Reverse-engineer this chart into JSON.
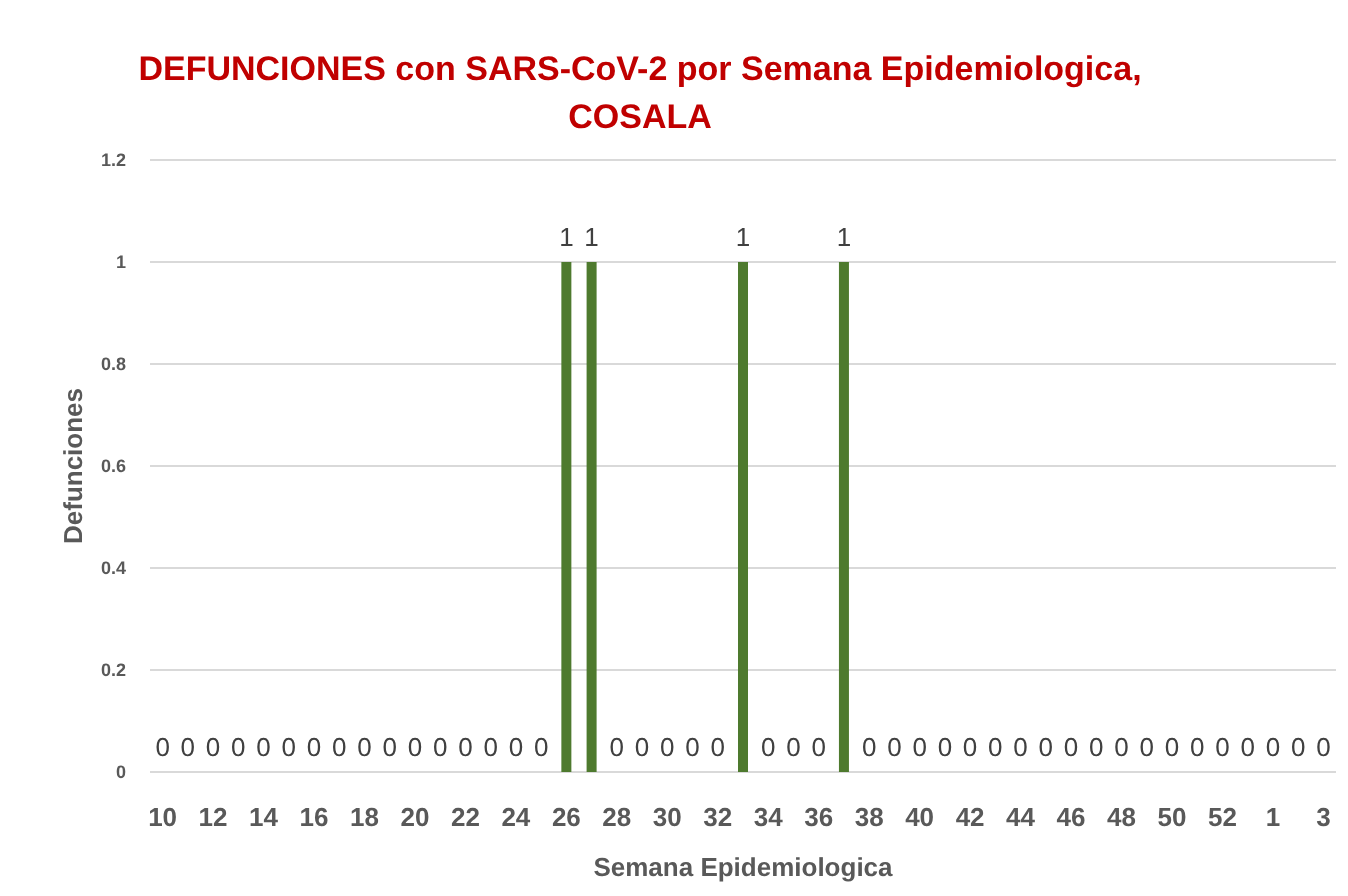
{
  "chart_data": {
    "type": "bar",
    "title": "DEFUNCIONES con SARS-CoV-2 por Semana Epidemiologica, COSALA",
    "xlabel": "Semana Epidemiologica",
    "ylabel": "Defunciones",
    "categories": [
      "10",
      null,
      "12",
      null,
      "14",
      null,
      "16",
      null,
      "18",
      null,
      "20",
      null,
      "22",
      null,
      "24",
      null,
      "26",
      null,
      "28",
      null,
      "30",
      null,
      "32",
      null,
      "34",
      null,
      "36",
      null,
      "38",
      null,
      "40",
      null,
      "42",
      null,
      "44",
      null,
      "46",
      null,
      "48",
      null,
      "50",
      null,
      "52",
      null,
      "1",
      null,
      "3"
    ],
    "series": [
      {
        "color": "#4e7a2e",
        "values": [
          0,
          0,
          0,
          0,
          0,
          0,
          0,
          0,
          0,
          0,
          0,
          0,
          0,
          0,
          0,
          0,
          1,
          1,
          0,
          0,
          0,
          0,
          0,
          1,
          0,
          0,
          0,
          1,
          0,
          0,
          0,
          0,
          0,
          0,
          0,
          0,
          0,
          0,
          0,
          0,
          0,
          0,
          0,
          0,
          0,
          0,
          0
        ]
      }
    ],
    "ylim": [
      0,
      1.2
    ],
    "yticks": [
      0,
      0.2,
      0.4,
      0.6,
      0.8,
      1,
      1.2
    ],
    "grid": "y",
    "data_labels": true
  }
}
